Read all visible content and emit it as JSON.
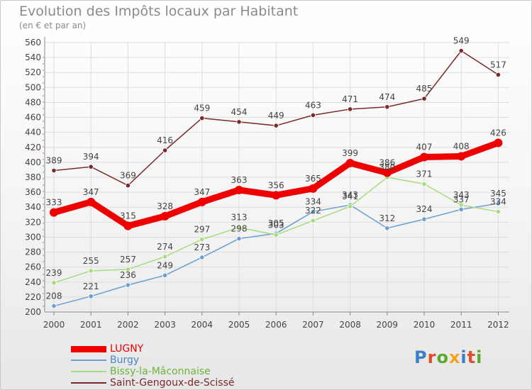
{
  "header": {
    "title": "Evolution des Impôts locaux par Habitant",
    "subtitle": "(en € et par an)"
  },
  "brand": {
    "name": "Proxiti",
    "letter_colors": [
      "#3b7fc4",
      "#e04d2a",
      "#5aa832",
      "#f2a51c",
      "#3b7fc4",
      "#e04d2a",
      "#5aa832"
    ]
  },
  "chart_data": {
    "type": "line",
    "x": [
      "2000",
      "2001",
      "2002",
      "2003",
      "2004",
      "2005",
      "2006",
      "2007",
      "2008",
      "2009",
      "2010",
      "2011",
      "2012"
    ],
    "ylim": [
      200,
      560
    ],
    "yticks": [
      "200",
      "220",
      "240",
      "260",
      "280",
      "300",
      "320",
      "340",
      "360",
      "380",
      "400",
      "420",
      "440",
      "460",
      "480",
      "500",
      "520",
      "540",
      "560"
    ],
    "grid": true,
    "legend_position": "bottom-left",
    "series": [
      {
        "name": "LUGNY",
        "color": "#ee0000",
        "emphasis": true,
        "values": [
          333,
          347,
          315,
          328,
          347,
          363,
          356,
          365,
          399,
          386,
          407,
          408,
          426
        ],
        "labels": [
          "333",
          "347",
          "315",
          "328",
          "347",
          "363",
          "356",
          "365",
          "399",
          "386",
          "407",
          "408",
          "426"
        ]
      },
      {
        "name": "Burgy",
        "color": "#6a9fcf",
        "emphasis": false,
        "values": [
          208,
          221,
          236,
          249,
          273,
          298,
          305,
          334,
          343,
          312,
          324,
          337,
          345
        ],
        "labels": [
          "208",
          "221",
          "236",
          "249",
          "273",
          "298",
          "305",
          "334",
          "343",
          "312",
          "324",
          "337",
          "345"
        ]
      },
      {
        "name": "Bissy-la-Mâconnaise",
        "color": "#a7dc7c",
        "emphasis": false,
        "values": [
          239,
          255,
          257,
          274,
          297,
          313,
          303,
          322,
          341,
          380,
          371,
          343,
          334
        ],
        "labels": [
          "239",
          "255",
          "257",
          "274",
          "297",
          "313",
          "303",
          "322",
          "341",
          "380",
          "371",
          "343",
          "334"
        ]
      },
      {
        "name": "Saint-Gengoux-de-Scissé",
        "color": "#7a2a2a",
        "emphasis": false,
        "values": [
          389,
          394,
          369,
          416,
          459,
          454,
          449,
          463,
          471,
          474,
          485,
          549,
          517
        ],
        "labels": [
          "389",
          "394",
          "369",
          "416",
          "459",
          "454",
          "449",
          "463",
          "471",
          "474",
          "485",
          "549",
          "517"
        ]
      }
    ]
  }
}
